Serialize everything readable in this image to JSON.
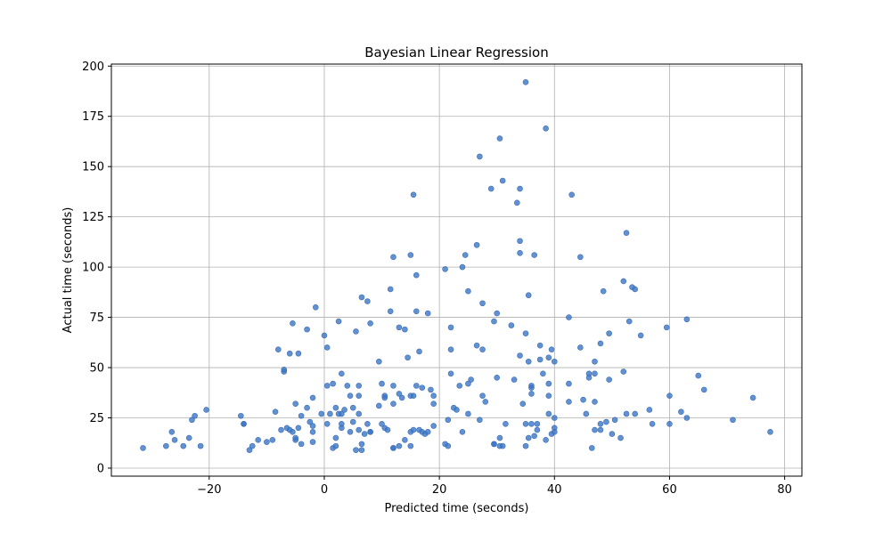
{
  "chart_data": {
    "type": "scatter",
    "title": "Bayesian Linear Regression",
    "xlabel": "Predicted time (seconds)",
    "ylabel": "Actual time (seconds)",
    "xlim": [
      -37,
      83
    ],
    "ylim": [
      -4,
      201
    ],
    "xticks": [
      -20,
      0,
      20,
      40,
      60,
      80
    ],
    "yticks": [
      0,
      25,
      50,
      75,
      100,
      125,
      150,
      175,
      200
    ],
    "xtick_labels": [
      "−20",
      "0",
      "20",
      "40",
      "60",
      "80"
    ],
    "ytick_labels": [
      "0",
      "25",
      "50",
      "75",
      "100",
      "125",
      "150",
      "175",
      "200"
    ],
    "grid": true,
    "marker_color": "#3a75c4",
    "marker_alpha": 0.8,
    "points": [
      [
        -31.5,
        10
      ],
      [
        -27.5,
        11
      ],
      [
        -26.5,
        18
      ],
      [
        -26,
        14
      ],
      [
        -24.5,
        11
      ],
      [
        -23.5,
        15
      ],
      [
        -23,
        24
      ],
      [
        -22.5,
        26
      ],
      [
        -21.5,
        11
      ],
      [
        -20.5,
        29
      ],
      [
        -14.5,
        26
      ],
      [
        -14,
        22
      ],
      [
        -14,
        22
      ],
      [
        -13,
        9
      ],
      [
        -12.5,
        11
      ],
      [
        -11.5,
        14
      ],
      [
        -10,
        13
      ],
      [
        -9,
        14
      ],
      [
        -8.5,
        28
      ],
      [
        -8,
        59
      ],
      [
        -7.5,
        19
      ],
      [
        -7,
        48
      ],
      [
        -7,
        49
      ],
      [
        -6.5,
        20
      ],
      [
        -6,
        57
      ],
      [
        -6,
        19
      ],
      [
        -5.5,
        72
      ],
      [
        -5.5,
        18
      ],
      [
        -5,
        32
      ],
      [
        -5,
        14
      ],
      [
        -5,
        15
      ],
      [
        -4.5,
        57
      ],
      [
        -4.5,
        20
      ],
      [
        -4,
        26
      ],
      [
        -4,
        12
      ],
      [
        -3,
        69
      ],
      [
        -3,
        30
      ],
      [
        -2.5,
        23
      ],
      [
        -2,
        21
      ],
      [
        -2,
        35
      ],
      [
        -2,
        18
      ],
      [
        -1.5,
        80
      ],
      [
        -2,
        13
      ],
      [
        0,
        66
      ],
      [
        -0.5,
        27
      ],
      [
        0.5,
        22
      ],
      [
        0.5,
        41
      ],
      [
        0.5,
        60
      ],
      [
        1,
        27
      ],
      [
        1.5,
        42
      ],
      [
        1.5,
        10
      ],
      [
        2,
        30
      ],
      [
        2,
        15
      ],
      [
        2,
        11
      ],
      [
        2.5,
        27
      ],
      [
        2.5,
        73
      ],
      [
        3,
        22
      ],
      [
        3,
        20
      ],
      [
        3,
        47
      ],
      [
        3,
        27
      ],
      [
        3.5,
        29
      ],
      [
        4,
        41
      ],
      [
        4.5,
        36
      ],
      [
        4.5,
        18
      ],
      [
        5,
        30
      ],
      [
        5,
        23
      ],
      [
        5.5,
        68
      ],
      [
        5.5,
        9
      ],
      [
        6,
        19
      ],
      [
        6,
        41
      ],
      [
        6,
        27
      ],
      [
        6,
        36
      ],
      [
        6.5,
        85
      ],
      [
        6.5,
        9
      ],
      [
        6.5,
        12
      ],
      [
        7,
        17
      ],
      [
        7.5,
        83
      ],
      [
        7.5,
        22
      ],
      [
        8,
        18
      ],
      [
        8,
        72
      ],
      [
        8,
        18
      ],
      [
        9.5,
        53
      ],
      [
        9.5,
        31
      ],
      [
        10,
        42
      ],
      [
        10,
        22
      ],
      [
        10.5,
        36
      ],
      [
        10.5,
        20
      ],
      [
        10.5,
        35
      ],
      [
        11,
        19
      ],
      [
        11.5,
        89
      ],
      [
        11.5,
        78
      ],
      [
        12,
        105
      ],
      [
        12,
        41
      ],
      [
        12,
        10
      ],
      [
        12,
        32
      ],
      [
        12,
        10
      ],
      [
        13,
        37
      ],
      [
        13,
        70
      ],
      [
        13,
        11
      ],
      [
        13.5,
        35
      ],
      [
        14,
        14
      ],
      [
        14,
        69
      ],
      [
        14.5,
        55
      ],
      [
        15,
        106
      ],
      [
        15,
        18
      ],
      [
        15,
        11
      ],
      [
        15,
        36
      ],
      [
        15.5,
        136
      ],
      [
        15.5,
        36
      ],
      [
        15.5,
        19
      ],
      [
        16,
        78
      ],
      [
        16,
        96
      ],
      [
        16,
        41
      ],
      [
        16.5,
        58
      ],
      [
        16.5,
        19
      ],
      [
        17,
        18
      ],
      [
        17,
        40
      ],
      [
        17.5,
        17
      ],
      [
        18,
        77
      ],
      [
        18,
        18
      ],
      [
        18.5,
        39
      ],
      [
        19,
        21
      ],
      [
        19,
        36
      ],
      [
        19,
        32
      ],
      [
        21,
        99
      ],
      [
        21,
        12
      ],
      [
        21.5,
        11
      ],
      [
        21.5,
        24
      ],
      [
        22,
        70
      ],
      [
        22,
        59
      ],
      [
        22,
        47
      ],
      [
        22.5,
        30
      ],
      [
        23,
        29
      ],
      [
        23.5,
        41
      ],
      [
        24,
        100
      ],
      [
        24,
        18
      ],
      [
        24.5,
        106
      ],
      [
        25,
        88
      ],
      [
        25,
        27
      ],
      [
        25,
        42
      ],
      [
        25.5,
        44
      ],
      [
        26.5,
        111
      ],
      [
        26.5,
        61
      ],
      [
        27,
        155
      ],
      [
        27,
        24
      ],
      [
        27.5,
        82
      ],
      [
        27.5,
        36
      ],
      [
        27.5,
        59
      ],
      [
        28,
        33
      ],
      [
        29,
        139
      ],
      [
        29.5,
        73
      ],
      [
        29.5,
        12
      ],
      [
        29.5,
        12
      ],
      [
        30,
        77
      ],
      [
        30,
        45
      ],
      [
        30.5,
        164
      ],
      [
        30.5,
        15
      ],
      [
        30.5,
        11
      ],
      [
        31,
        143
      ],
      [
        31,
        11
      ],
      [
        31.5,
        22
      ],
      [
        32.5,
        71
      ],
      [
        33,
        44
      ],
      [
        33.5,
        132
      ],
      [
        34,
        139
      ],
      [
        34,
        107
      ],
      [
        34,
        113
      ],
      [
        34,
        56
      ],
      [
        34.5,
        32
      ],
      [
        35,
        192
      ],
      [
        35,
        22
      ],
      [
        35,
        11
      ],
      [
        35,
        67
      ],
      [
        35.5,
        53
      ],
      [
        35.5,
        86
      ],
      [
        35.5,
        15
      ],
      [
        36,
        37
      ],
      [
        36,
        40
      ],
      [
        36,
        22
      ],
      [
        36,
        41
      ],
      [
        36.5,
        16
      ],
      [
        36.5,
        106
      ],
      [
        37,
        22
      ],
      [
        37,
        19
      ],
      [
        37.5,
        54
      ],
      [
        37.5,
        61
      ],
      [
        38,
        47
      ],
      [
        38.5,
        14
      ],
      [
        38.5,
        169
      ],
      [
        39,
        36
      ],
      [
        39,
        42
      ],
      [
        39,
        27
      ],
      [
        39,
        55
      ],
      [
        39.5,
        59
      ],
      [
        39.5,
        17
      ],
      [
        40,
        53
      ],
      [
        40,
        18
      ],
      [
        40,
        25
      ],
      [
        40,
        20
      ],
      [
        42.5,
        75
      ],
      [
        42.5,
        33
      ],
      [
        42.5,
        42
      ],
      [
        43,
        136
      ],
      [
        44.5,
        60
      ],
      [
        44.5,
        105
      ],
      [
        45,
        34
      ],
      [
        45.5,
        27
      ],
      [
        46,
        47
      ],
      [
        46,
        45
      ],
      [
        46.5,
        10
      ],
      [
        47,
        53
      ],
      [
        47,
        33
      ],
      [
        47,
        19
      ],
      [
        47,
        47
      ],
      [
        48,
        62
      ],
      [
        48,
        19
      ],
      [
        48,
        22
      ],
      [
        48.5,
        88
      ],
      [
        49,
        23
      ],
      [
        49.5,
        44
      ],
      [
        49.5,
        67
      ],
      [
        50,
        17
      ],
      [
        50.5,
        24
      ],
      [
        51.5,
        15
      ],
      [
        52,
        93
      ],
      [
        52,
        48
      ],
      [
        52.5,
        27
      ],
      [
        52.5,
        117
      ],
      [
        53,
        73
      ],
      [
        53.5,
        90
      ],
      [
        54,
        89
      ],
      [
        54,
        27
      ],
      [
        55,
        66
      ],
      [
        56.5,
        29
      ],
      [
        57,
        22
      ],
      [
        59.5,
        70
      ],
      [
        60,
        22
      ],
      [
        60,
        36
      ],
      [
        62,
        28
      ],
      [
        63,
        25
      ],
      [
        63,
        74
      ],
      [
        65,
        46
      ],
      [
        66,
        39
      ],
      [
        71,
        24
      ],
      [
        74.5,
        35
      ],
      [
        77.5,
        18
      ]
    ]
  }
}
